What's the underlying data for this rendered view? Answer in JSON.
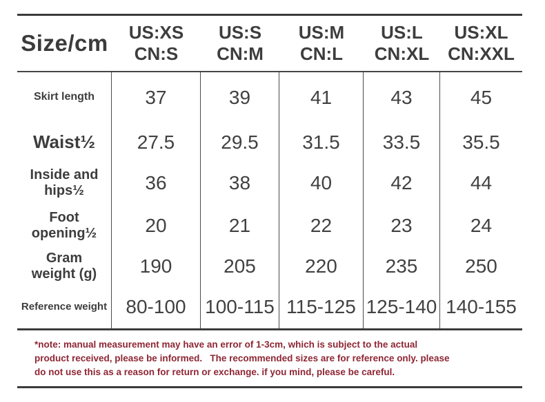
{
  "table": {
    "corner_label": "Size/cm",
    "size_columns": [
      {
        "us": "US:XS",
        "cn": "CN:S"
      },
      {
        "us": "US:S",
        "cn": "CN:M"
      },
      {
        "us": "US:M",
        "cn": "CN:L"
      },
      {
        "us": "US:L",
        "cn": "CN:XL"
      },
      {
        "us": "US:XL",
        "cn": "CN:XXL"
      }
    ],
    "rows": [
      {
        "label": "Skirt length",
        "values": [
          "37",
          "39",
          "41",
          "43",
          "45"
        ]
      },
      {
        "label": "Waist½",
        "values": [
          "27.5",
          "29.5",
          "31.5",
          "33.5",
          "35.5"
        ]
      },
      {
        "label": "Inside and\nhips½",
        "values": [
          "36",
          "38",
          "40",
          "42",
          "44"
        ]
      },
      {
        "label": "Foot\nopening½",
        "values": [
          "20",
          "21",
          "22",
          "23",
          "24"
        ]
      },
      {
        "label": "Gram\nweight (g)",
        "values": [
          "190",
          "205",
          "220",
          "235",
          "250"
        ]
      },
      {
        "label": "Reference weight",
        "values": [
          "80-100",
          "100-115",
          "115-125",
          "125-140",
          "140-155"
        ]
      }
    ]
  },
  "note": {
    "text": "*note: manual measurement may have an error of 1-3cm, which is subject to the actual\nproduct received, please be informed.   The recommended sizes are for reference only. please\ndo not use this as a reason for return or exchange. if you mind, please be careful."
  },
  "colors": {
    "text": "#3d3d3d",
    "rule": "#3b3b3b",
    "divider": "#4a4a4a",
    "note": "#8e2634"
  }
}
